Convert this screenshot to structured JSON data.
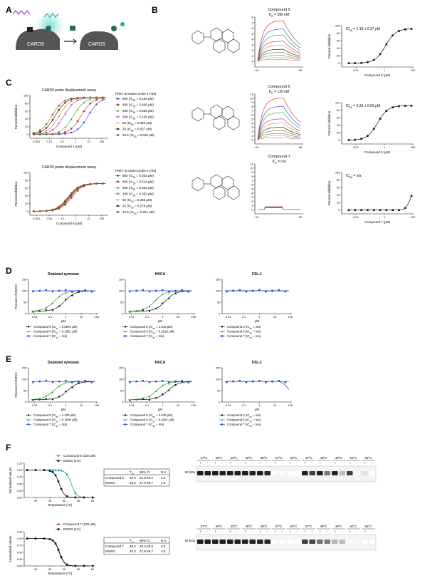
{
  "panels": {
    "A": "A",
    "B": "B",
    "C": "C",
    "D": "D",
    "E": "E",
    "F": "F"
  },
  "panelA": {
    "protein": "CARD9",
    "protein2": "CARD9"
  },
  "panelB": {
    "compounds": [
      {
        "title": "Compound 5",
        "kd": "K",
        "kd_sub": "D",
        "kd_val": " = 390 nM",
        "sensor_ticks": [
          "0",
          "1",
          "2",
          "3",
          "4",
          "5",
          "6",
          "7",
          "8"
        ],
        "sensor_max": 8,
        "ic50": "IC",
        "ic50_sub": "50",
        "ic50_val": " = 1.18 ± 0.27 μM",
        "xlabel": "Compound 5 (μM)",
        "amp": 1.0,
        "ic": 1.18
      },
      {
        "title": "Compound 6",
        "kd": "K",
        "kd_sub": "D",
        "kd_val": " = 120 nM",
        "sensor_ticks": [
          "0",
          "1",
          "2",
          "3",
          "4",
          "5",
          "6",
          "7",
          "8",
          "9",
          "10",
          "11"
        ],
        "sensor_max": 11,
        "ic50": "IC",
        "ic50_sub": "50",
        "ic50_val": " = 0.33 ± 0.03 μM",
        "xlabel": "Compound 6 (μM)",
        "amp": 1.0,
        "ic": 0.33
      },
      {
        "title": "Compound 7",
        "kd": "K",
        "kd_sub": "D",
        "kd_val": " = n/a",
        "sensor_ticks": [
          "0",
          "1",
          "2",
          "3",
          "4",
          "5",
          "6",
          "7",
          "8",
          "9",
          "10",
          "11"
        ],
        "sensor_max": 11,
        "ic50": "IC",
        "ic50_sub": "50",
        "ic50_val": " = n/a",
        "xlabel": "Compound 7 (μM)",
        "amp": 0.0,
        "ic": null
      }
    ],
    "sensor_xticks": [
      "−10",
      "90"
    ],
    "inhib_yticks": [
      "0",
      "20",
      "40",
      "60",
      "80",
      "100"
    ],
    "inhib_ylabel": "Percent inhibition",
    "inhib_xticks": [
      "0.01",
      "1",
      "100"
    ]
  },
  "panelC": {
    "title": "CARD9 probe displacement assay",
    "ylabel": "Percent inhibition",
    "yticks": [
      "0",
      "20",
      "40",
      "60",
      "80",
      "100"
    ],
    "xticks": [
      "0.001",
      "0.01",
      "0.1",
      "1",
      "10",
      "100"
    ],
    "legend_title": "FRET acceptor probe 4 (nM)",
    "plots": [
      {
        "xlabel": "Compound 1 (μM)",
        "series": [
          {
            "name": "800 (IC",
            "sub": "50",
            "val": " = 9.155 μM)",
            "color": "#1f3fd6",
            "marker": "circle",
            "ic": 9.155
          },
          {
            "name": "400 (IC",
            "sub": "50",
            "val": " = 2.609 μM)",
            "color": "#d21f1f",
            "marker": "square",
            "ic": 2.609
          },
          {
            "name": "200 (IC",
            "sub": "50",
            "val": " = 0.683 μM)",
            "color": "#20a020",
            "marker": "triangle",
            "ic": 0.683
          },
          {
            "name": "100 (IC",
            "sub": "50",
            "val": " = 0.129 μM)",
            "color": "#a020c0",
            "marker": "triangle-down",
            "ic": 0.129
          },
          {
            "name": "50 (IC",
            "sub": "50",
            "val": " = 0.055 μM)",
            "color": "#f08a00",
            "marker": "diamond",
            "ic": 0.055
          },
          {
            "name": "25 (IC",
            "sub": "50",
            "val": " = 0.027 μM)",
            "color": "#111111",
            "marker": "circle",
            "ic": 0.027
          },
          {
            "name": "12.5 (IC",
            "sub": "50",
            "val": " = 0.015 μM)",
            "color": "#9a5a20",
            "marker": "square",
            "ic": 0.015
          }
        ]
      },
      {
        "xlabel": "Compound 6 (μM)",
        "series": [
          {
            "name": "800 (IC",
            "sub": "50",
            "val": " = 0.363 μM)",
            "color": "#1f3fd6",
            "marker": "circle",
            "ic": 0.363
          },
          {
            "name": "400 (IC",
            "sub": "50",
            "val": " = 0.514 μM)",
            "color": "#d21f1f",
            "marker": "square",
            "ic": 0.514
          },
          {
            "name": "200 (IC",
            "sub": "50",
            "val": " = 0.392 μM)",
            "color": "#20a020",
            "marker": "triangle",
            "ic": 0.392
          },
          {
            "name": "100 (IC",
            "sub": "50",
            "val": " = 0.352 μM)",
            "color": "#a020c0",
            "marker": "triangle-down",
            "ic": 0.352
          },
          {
            "name": "50 (IC",
            "sub": "50",
            "val": " = 0.308 μM)",
            "color": "#f08a00",
            "marker": "diamond",
            "ic": 0.308
          },
          {
            "name": "25 (IC",
            "sub": "50",
            "val": " = 0.278 μM)",
            "color": "#111111",
            "marker": "circle",
            "ic": 0.278
          },
          {
            "name": "12.5 (IC",
            "sub": "50",
            "val": " = 0.251 μM)",
            "color": "#9a5a20",
            "marker": "square",
            "ic": 0.251
          }
        ]
      }
    ]
  },
  "panelDE": {
    "ylabel": "Percent of DMSO",
    "yticks": [
      "0",
      "50",
      "100",
      "150"
    ],
    "xticks": [
      "0.01",
      "0.1",
      "1",
      "10",
      "100"
    ],
    "xlabel": "μM",
    "titles": [
      "Depleted zymosan",
      "HKCA",
      "FSL-1"
    ],
    "rows": [
      [
        [
          {
            "name": "Compound 5 (IC",
            "sub": "50",
            "val": " = 0.8876 μM)",
            "color": "#111111",
            "ic": 0.8876
          },
          {
            "name": "Compound 6 (IC",
            "sub": "50",
            "val": " = 0.1851 μM)",
            "color": "#20a020",
            "ic": 0.1851
          },
          {
            "name": "Compound 7 (IC",
            "sub": "50",
            "val": " = n/a)",
            "color": "#1f3fd6",
            "ic": null
          }
        ],
        [
          {
            "name": "Compound 5 (IC",
            "sub": "50",
            "val": " = 1.543 μM)",
            "color": "#111111",
            "ic": 1.543
          },
          {
            "name": "Compound 6 (IC",
            "sub": "50",
            "val": " = 0.3213 μM)",
            "color": "#20a020",
            "ic": 0.3213
          },
          {
            "name": "Compound 7 (IC",
            "sub": "50",
            "val": " = n/a)",
            "color": "#1f3fd6",
            "ic": null
          }
        ],
        [
          {
            "name": "Compound 5 (IC",
            "sub": "50",
            "val": " = n/a)",
            "color": "#111111",
            "ic": null
          },
          {
            "name": "Compound 6 (IC",
            "sub": "50",
            "val": " = n/a)",
            "color": "#20a020",
            "ic": null
          },
          {
            "name": "Compound 7 (IC",
            "sub": "50",
            "val": " = n/a)",
            "color": "#1f3fd6",
            "ic": null
          }
        ]
      ],
      [
        [
          {
            "name": "Compound 5 (IC",
            "sub": "50",
            "val": " = 1.328 μM)",
            "color": "#111111",
            "ic": 1.328
          },
          {
            "name": "Compound 6 (IC",
            "sub": "50",
            "val": " = 0.1690 μM)",
            "color": "#20a020",
            "ic": 0.169
          },
          {
            "name": "Compound 7 (IC",
            "sub": "50",
            "val": " = n/a)",
            "color": "#1f3fd6",
            "ic": null
          }
        ],
        [
          {
            "name": "Compound 5 (IC",
            "sub": "50",
            "val": " = 2.246 μM)",
            "color": "#111111",
            "ic": 2.246
          },
          {
            "name": "Compound 6 (IC",
            "sub": "50",
            "val": " = 0.4181 μM)",
            "color": "#20a020",
            "ic": 0.4181
          },
          {
            "name": "Compound 7 (IC",
            "sub": "50",
            "val": " = n/a)",
            "color": "#1f3fd6",
            "ic": null
          }
        ],
        [
          {
            "name": "Compound 5 (IC",
            "sub": "50",
            "val": " = n/a)",
            "color": "#111111",
            "ic": null
          },
          {
            "name": "Compound 6 (IC",
            "sub": "50",
            "val": " = n/a)",
            "color": "#20a020",
            "ic": null
          },
          {
            "name": "Compound 7 (IC",
            "sub": "50",
            "val": " = n/a)",
            "color": "#1f3fd6",
            "ic": null
          }
        ]
      ]
    ]
  },
  "panelF": {
    "ylabel": "Normalised values",
    "yticks": [
      "0.00",
      "0.25",
      "0.50",
      "0.75",
      "1.00",
      "1.25"
    ],
    "xticks": [
      "40",
      "45",
      "50",
      "55",
      "60"
    ],
    "xlabel": "Temperature (ºC)",
    "table_head": [
      "",
      "T",
      "95% CI",
      "N:n"
    ],
    "tm_sub": "m",
    "temps": [
      "37ºC",
      "40ºC",
      "43ºC",
      "45ºC",
      "46ºC",
      "57ºC",
      "60ºC",
      "47ºC",
      "48ºC",
      "49ºC",
      "51ºC",
      "54ºC"
    ],
    "pm": [
      "+",
      "-"
    ],
    "kda": "62 kDa",
    "rows": [
      {
        "legend": [
          {
            "name": "Compound 6 (100 μM)",
            "color": "#1a9a9a"
          },
          {
            "name": "DMSO (1%)",
            "color": "#111111"
          }
        ],
        "table": [
          [
            "Compound 6",
            "52.5",
            "51.8-53.2",
            "2:3"
          ],
          [
            "DMSO",
            "48.3",
            "47.9-48.7",
            "4:6"
          ]
        ],
        "tm": 52.5,
        "tm_dmso": 48.3
      },
      {
        "legend": [
          {
            "name": "Compound 7 (100 μM)",
            "color": "#8a1a8a"
          },
          {
            "name": "DMSO (1%)",
            "color": "#111111"
          }
        ],
        "table": [
          [
            "Compound 7",
            "48.4",
            "48.2-48.5",
            "2:3"
          ],
          [
            "DMSO",
            "48.3",
            "47.9-48.7",
            "4:6"
          ]
        ],
        "tm": 48.4,
        "tm_dmso": 48.3
      }
    ]
  }
}
